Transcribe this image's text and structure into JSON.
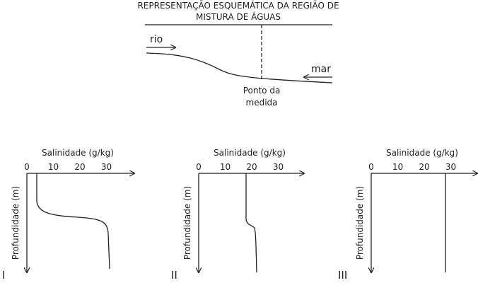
{
  "header": {
    "title_line1": "REPRESENTAÇÃO ESQUEMÁTICA DA REGIÃO DE",
    "title_line2": "MISTURA DE ÁGUAS"
  },
  "scheme": {
    "river_label": "rio",
    "sea_label": "mar",
    "point_line1": "Ponto da",
    "point_line2": "medida"
  },
  "panels": [
    {
      "label": "I",
      "x_title": "Salinidade (g/kg)",
      "y_title": "Profundidade (m)",
      "ticks": [
        "0",
        "10",
        "20",
        "30"
      ]
    },
    {
      "label": "II",
      "x_title": "Salinidade (g/kg)",
      "y_title": "Profundidade (m)",
      "ticks": [
        "0",
        "10",
        "20",
        "30"
      ]
    },
    {
      "label": "III",
      "x_title": "Salinidade (g/kg)",
      "y_title": "Profundidade (m)",
      "ticks": [
        "0",
        "10",
        "20",
        "30"
      ]
    }
  ]
}
